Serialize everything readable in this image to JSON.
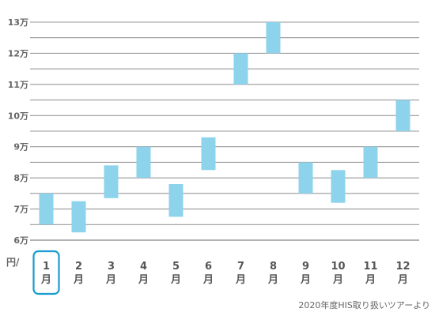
{
  "chart_data": {
    "type": "bar",
    "subtype": "floating-range",
    "categories": [
      "1月",
      "2月",
      "3月",
      "4月",
      "5月",
      "6月",
      "7月",
      "8月",
      "9月",
      "10月",
      "11月",
      "12月"
    ],
    "month_numbers": [
      "1",
      "2",
      "3",
      "4",
      "5",
      "6",
      "7",
      "8",
      "9",
      "10",
      "11",
      "12"
    ],
    "month_suffix": "月",
    "ranges": [
      [
        65000,
        75000
      ],
      [
        62500,
        72500
      ],
      [
        73500,
        84000
      ],
      [
        80000,
        90000
      ],
      [
        67500,
        78000
      ],
      [
        82500,
        93000
      ],
      [
        110000,
        120000
      ],
      [
        120000,
        130000
      ],
      [
        75000,
        85000
      ],
      [
        72000,
        82500
      ],
      [
        80000,
        90000
      ],
      [
        95000,
        105000
      ]
    ],
    "ylim": [
      60000,
      130000
    ],
    "yticks": [
      60000,
      70000,
      80000,
      90000,
      100000,
      110000,
      120000,
      130000
    ],
    "ytick_labels": [
      "6万",
      "7万",
      "8万",
      "9万",
      "10万",
      "11万",
      "12万",
      "13万"
    ],
    "xaxis_unit_label": "円/",
    "highlighted_category_index": 0,
    "grid": true,
    "bar_color": "#8dd3ec",
    "grid_color": "#999999",
    "highlight_color": "#1a9bd2",
    "source_note": "2020年度HIS取り扱いツアーより"
  }
}
